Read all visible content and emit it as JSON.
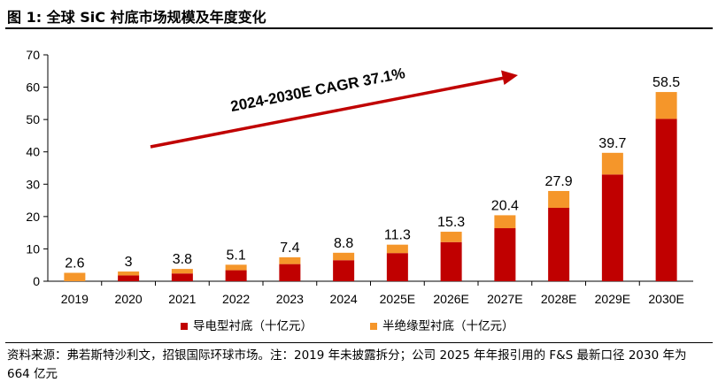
{
  "figure_title": "图 1: 全球 SiC 衬底市场规模及年度变化",
  "source_note": "资料来源：弗若斯特沙利文，招银国际环球市场。注：2019 年未披露拆分；公司 2025 年年报引用的 F&S 最新口径 2030 年为 664 亿元",
  "colors": {
    "conductive": "#C00000",
    "semi_insulating": "#F5962A",
    "arrow": "#C00000"
  },
  "chart_data": {
    "type": "bar",
    "stacked": true,
    "categories": [
      "2019",
      "2020",
      "2021",
      "2022",
      "2023",
      "2024",
      "2025E",
      "2026E",
      "2027E",
      "2028E",
      "2029E",
      "2030E"
    ],
    "series": [
      {
        "name": "导电型衬底（十亿元）",
        "values": [
          0,
          1.8,
          2.4,
          3.4,
          5.3,
          6.5,
          8.7,
          12.1,
          16.4,
          22.7,
          33.0,
          50.2
        ]
      },
      {
        "name": "半绝缘型衬底（十亿元）",
        "values": [
          2.6,
          1.2,
          1.4,
          1.7,
          2.1,
          2.3,
          2.6,
          3.2,
          4.0,
          5.2,
          6.7,
          8.3
        ]
      }
    ],
    "totals": [
      "2.6",
      "3",
      "3.8",
      "5.1",
      "7.4",
      "8.8",
      "11.3",
      "15.3",
      "20.4",
      "27.9",
      "39.7",
      "58.5"
    ],
    "total_values": [
      2.6,
      3,
      3.8,
      5.1,
      7.4,
      8.8,
      11.3,
      15.3,
      20.4,
      27.9,
      39.7,
      58.5
    ],
    "ylim": [
      0,
      70
    ],
    "yticks": [
      "0",
      "10",
      "20",
      "30",
      "40",
      "50",
      "60",
      "70"
    ],
    "ytick_values": [
      0,
      10,
      20,
      30,
      40,
      50,
      60,
      70
    ],
    "annotation": "2024-2030E CAGR 37.1%",
    "legend_position": "bottom",
    "grid": false
  }
}
